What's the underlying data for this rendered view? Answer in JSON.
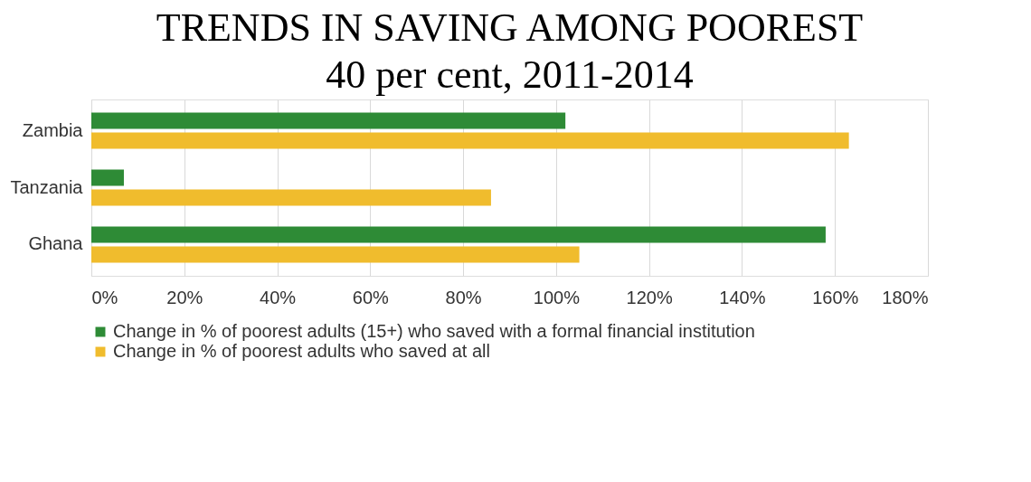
{
  "chart_data": {
    "type": "bar",
    "orientation": "horizontal",
    "title": "TRENDS IN SAVING AMONG POOREST 40 per cent, 2011-2014",
    "categories": [
      "Zambia",
      "Tanzania",
      "Ghana"
    ],
    "series": [
      {
        "name": "Change in % of poorest adults (15+) who saved with a formal financial institution",
        "color": "#2e8b36",
        "values": [
          102,
          7,
          158
        ]
      },
      {
        "name": "Change in % of poorest adults who saved at all",
        "color": "#f0bc2d",
        "values": [
          163,
          86,
          105
        ]
      }
    ],
    "xlim": [
      0,
      180
    ],
    "xticks": [
      {
        "value": 0,
        "label": "0%"
      },
      {
        "value": 20,
        "label": "20%"
      },
      {
        "value": 40,
        "label": "40%"
      },
      {
        "value": 60,
        "label": "60%"
      },
      {
        "value": 80,
        "label": "80%"
      },
      {
        "value": 100,
        "label": "100%"
      },
      {
        "value": 120,
        "label": "120%"
      },
      {
        "value": 140,
        "label": "140%"
      },
      {
        "value": 160,
        "label": "160%"
      },
      {
        "value": 180,
        "label": "180%"
      }
    ],
    "grid": "x",
    "legend": "bottom"
  }
}
